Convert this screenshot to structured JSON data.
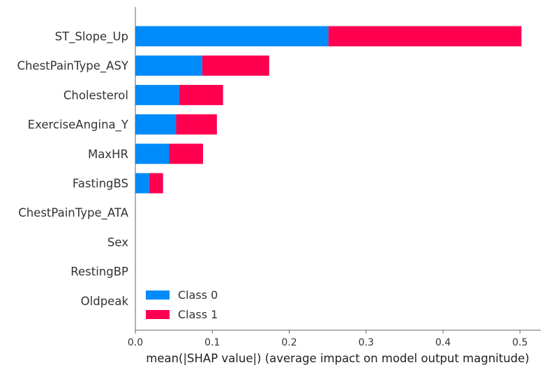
{
  "chart_data": {
    "type": "bar",
    "stacked": true,
    "orientation": "horizontal",
    "categories": [
      "ST_Slope_Up",
      "ChestPainType_ASY",
      "Cholesterol",
      "ExerciseAngina_Y",
      "MaxHR",
      "FastingBS",
      "ChestPainType_ATA",
      "Sex",
      "RestingBP",
      "Oldpeak"
    ],
    "series": [
      {
        "name": "Class 0",
        "color": "#008bfb",
        "values": [
          0.251,
          0.087,
          0.057,
          0.053,
          0.044,
          0.018,
          0.0,
          0.0,
          0.0,
          0.0
        ]
      },
      {
        "name": "Class 1",
        "color": "#ff0051",
        "values": [
          0.251,
          0.087,
          0.057,
          0.053,
          0.044,
          0.018,
          0.0,
          0.0,
          0.0,
          0.0
        ]
      }
    ],
    "xlabel": "mean(|SHAP value|) (average impact on model output magnitude)",
    "ylabel": "",
    "title": "",
    "xlim": [
      0,
      0.527
    ],
    "xticks": [
      "0.0",
      "0.1",
      "0.2",
      "0.3",
      "0.4",
      "0.5"
    ],
    "grid": false,
    "legend_position": "lower-left"
  }
}
